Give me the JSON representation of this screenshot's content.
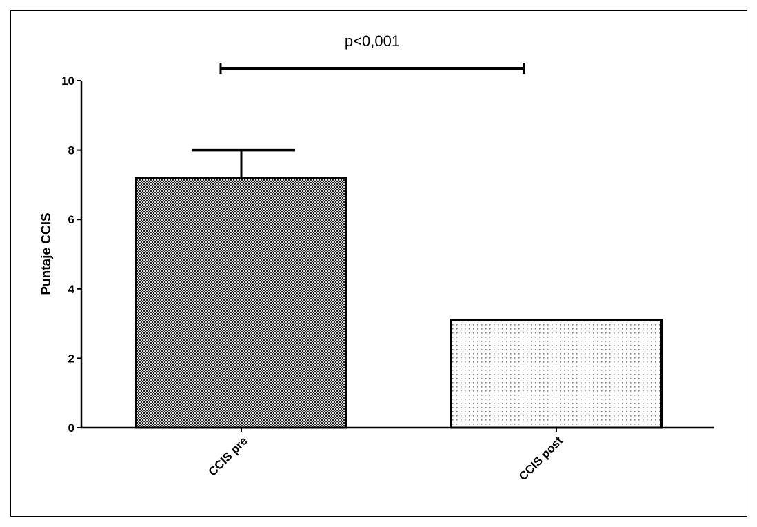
{
  "chart_data": {
    "type": "bar",
    "title": "",
    "xlabel": "",
    "ylabel": "Puntaje CCIS",
    "ylim": [
      0,
      10
    ],
    "yticks": [
      0,
      2,
      4,
      6,
      8,
      10
    ],
    "grid": false,
    "categories": [
      "CCIS pre",
      "CCIS post"
    ],
    "values": [
      7.2,
      3.1
    ],
    "error_upper": [
      8.0,
      null
    ],
    "bar_patterns": [
      "dense-checker",
      "sparse-dots"
    ],
    "annotation": {
      "text": "p<0,001",
      "from": "CCIS pre",
      "to": "CCIS post"
    },
    "colors": {
      "axis": "#000000",
      "fill_dark": "#3a3a3a",
      "fill_light": "#ffffff"
    }
  }
}
